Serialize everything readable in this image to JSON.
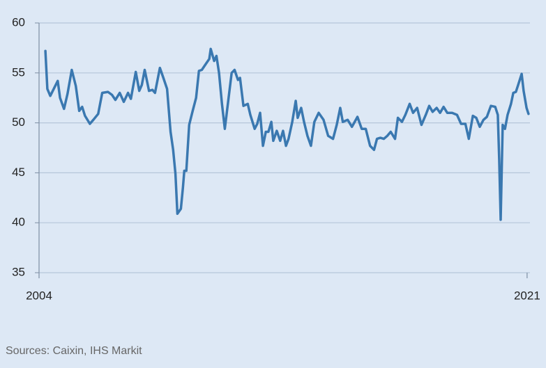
{
  "chart_data": {
    "type": "line",
    "x": [
      2004.22,
      2004.29,
      2004.39,
      2004.53,
      2004.65,
      2004.73,
      2004.87,
      2004.99,
      2005.14,
      2005.28,
      2005.4,
      2005.5,
      2005.6,
      2005.77,
      2005.89,
      2006.06,
      2006.2,
      2006.4,
      2006.54,
      2006.66,
      2006.81,
      2006.95,
      2007.1,
      2007.2,
      2007.37,
      2007.49,
      2007.58,
      2007.68,
      2007.83,
      2007.95,
      2008.04,
      2008.21,
      2008.33,
      2008.46,
      2008.58,
      2008.67,
      2008.75,
      2008.82,
      2008.94,
      2009.01,
      2009.06,
      2009.13,
      2009.23,
      2009.35,
      2009.47,
      2009.57,
      2009.67,
      2009.81,
      2009.93,
      2009.98,
      2010.1,
      2010.18,
      2010.27,
      2010.37,
      2010.47,
      2010.59,
      2010.71,
      2010.81,
      2010.93,
      2011.0,
      2011.12,
      2011.27,
      2011.36,
      2011.51,
      2011.6,
      2011.7,
      2011.8,
      2011.9,
      2011.99,
      2012.09,
      2012.16,
      2012.28,
      2012.4,
      2012.5,
      2012.6,
      2012.69,
      2012.82,
      2012.94,
      2013.01,
      2013.13,
      2013.23,
      2013.35,
      2013.47,
      2013.59,
      2013.74,
      2013.91,
      2014.07,
      2014.24,
      2014.37,
      2014.49,
      2014.58,
      2014.75,
      2014.9,
      2015.09,
      2015.24,
      2015.38,
      2015.53,
      2015.67,
      2015.77,
      2015.89,
      2016.01,
      2016.13,
      2016.25,
      2016.4,
      2016.5,
      2016.64,
      2016.76,
      2016.91,
      2017.03,
      2017.17,
      2017.32,
      2017.47,
      2017.59,
      2017.71,
      2017.85,
      2017.97,
      2018.09,
      2018.22,
      2018.39,
      2018.56,
      2018.7,
      2018.85,
      2018.97,
      2019.11,
      2019.23,
      2019.35,
      2019.48,
      2019.6,
      2019.74,
      2019.89,
      2019.98,
      2020.03,
      2020.08,
      2020.15,
      2020.23,
      2020.32,
      2020.44,
      2020.52,
      2020.61,
      2020.69,
      2020.81,
      2020.88,
      2020.98,
      2021.05
    ],
    "values": [
      57.2,
      53.4,
      52.7,
      53.5,
      54.2,
      52.5,
      51.4,
      52.9,
      55.3,
      53.7,
      51.2,
      51.6,
      50.7,
      49.9,
      50.3,
      50.9,
      53.0,
      53.1,
      52.8,
      52.3,
      53.0,
      52.1,
      53.0,
      52.4,
      55.1,
      53.2,
      53.8,
      55.3,
      53.2,
      53.3,
      53.0,
      55.5,
      54.5,
      53.4,
      49.1,
      47.3,
      44.9,
      40.9,
      41.4,
      43.5,
      45.2,
      45.2,
      49.8,
      51.2,
      52.5,
      55.2,
      55.3,
      55.9,
      56.4,
      57.4,
      56.2,
      56.7,
      55.0,
      51.9,
      49.4,
      52.2,
      55.0,
      55.3,
      54.3,
      54.5,
      51.7,
      51.9,
      50.8,
      49.4,
      49.9,
      51.0,
      47.7,
      49.1,
      49.1,
      50.1,
      48.2,
      49.2,
      48.2,
      49.2,
      47.7,
      48.4,
      50.1,
      52.2,
      50.5,
      51.5,
      50.1,
      48.7,
      47.7,
      50.1,
      51.0,
      50.3,
      48.7,
      48.4,
      49.8,
      51.5,
      50.1,
      50.3,
      49.6,
      50.6,
      49.4,
      49.4,
      47.7,
      47.3,
      48.4,
      48.5,
      48.4,
      48.7,
      49.1,
      48.4,
      50.5,
      50.1,
      50.8,
      51.9,
      51.0,
      51.5,
      49.8,
      50.8,
      51.7,
      51.1,
      51.5,
      51.0,
      51.6,
      51.0,
      51.0,
      50.8,
      49.9,
      49.9,
      48.4,
      50.7,
      50.5,
      49.6,
      50.3,
      50.6,
      51.7,
      51.6,
      50.8,
      46.3,
      40.3,
      49.8,
      49.4,
      50.8,
      51.9,
      53.0,
      53.1,
      53.8,
      54.9,
      53.2,
      51.5,
      50.9
    ],
    "color": "#3a78b0",
    "xlim": [
      2004,
      2021.1
    ],
    "xticks": [
      2004,
      2021
    ],
    "ylim": [
      35,
      60
    ],
    "yticks": [
      35,
      40,
      45,
      50,
      55,
      60
    ],
    "grid": true,
    "source": "Sources: Caixin, IHS Markit"
  }
}
